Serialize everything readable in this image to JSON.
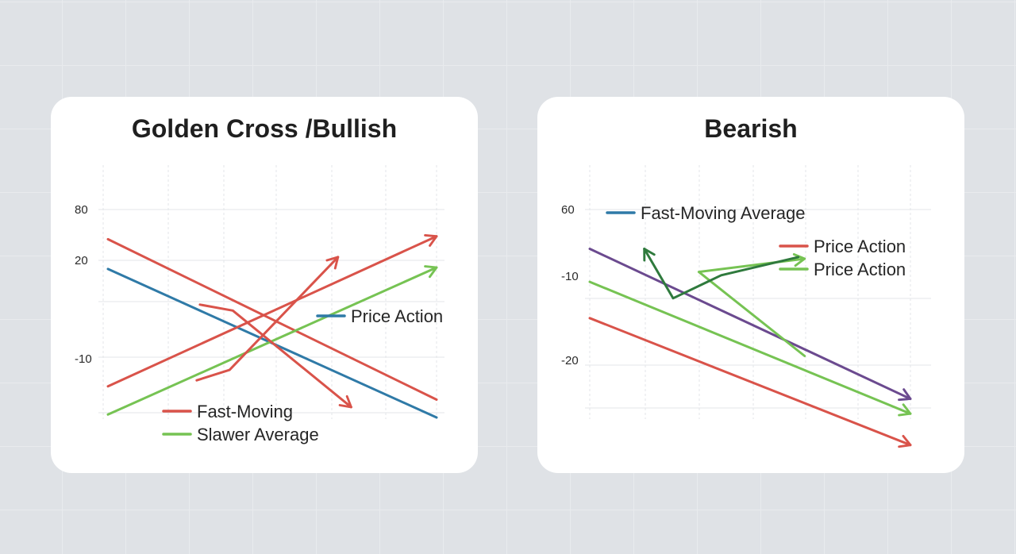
{
  "colors": {
    "background": "#dfe2e6",
    "card": "#ffffff",
    "grid": "#e3e5e8",
    "red": "#d9534a",
    "blue": "#2f7aa7",
    "green": "#76c353",
    "dark_green": "#2f7a3d",
    "purple": "#6b4a8f"
  },
  "chart_data": [
    {
      "type": "line",
      "title": "Golden Cross /Bullish",
      "y_ticks": [
        "80",
        "20",
        "-10"
      ],
      "ylim": [
        -40,
        100
      ],
      "xlim": [
        0,
        10
      ],
      "grid": true,
      "legend": [
        {
          "label": "Price Action",
          "color": "#2f7aa7",
          "placement": "center-right"
        },
        {
          "label": "Fast-Moving",
          "color": "#d9534a",
          "placement": "bottom"
        },
        {
          "label": "Slawer Average",
          "color": "#76c353",
          "placement": "bottom"
        }
      ],
      "series": [
        {
          "color": "#d9534a",
          "arrow": false,
          "points": [
            [
              0,
              80
            ],
            [
              10,
              -28
            ]
          ]
        },
        {
          "color": "#2f7aa7",
          "arrow": false,
          "points": [
            [
              0,
              60
            ],
            [
              10,
              -40
            ]
          ]
        },
        {
          "color": "#d9534a",
          "arrow": true,
          "points": [
            [
              0,
              -19
            ],
            [
              10,
              82
            ]
          ]
        },
        {
          "color": "#76c353",
          "arrow": true,
          "points": [
            [
              0,
              -38
            ],
            [
              10,
              61
            ]
          ]
        },
        {
          "color": "#d9534a",
          "arrow": true,
          "points": [
            [
              2.7,
              -15
            ],
            [
              3.7,
              -8
            ],
            [
              7.0,
              68
            ]
          ]
        },
        {
          "color": "#d9534a",
          "arrow": true,
          "points": [
            [
              2.8,
              36
            ],
            [
              3.8,
              32
            ],
            [
              7.4,
              -33
            ]
          ]
        }
      ]
    },
    {
      "type": "line",
      "title": "Bearish",
      "y_ticks": [
        "60",
        "-10",
        "-20"
      ],
      "ylim": [
        -60,
        70
      ],
      "xlim": [
        0,
        10
      ],
      "grid": true,
      "legend": [
        {
          "label": "Fast-Moving Average",
          "color": "#2f7aa7",
          "placement": "top-left"
        },
        {
          "label": "Price Action",
          "color": "#d9534a",
          "placement": "top-right"
        },
        {
          "label": "Price Action",
          "color": "#76c353",
          "placement": "top-right"
        }
      ],
      "series": [
        {
          "color": "#6b4a8f",
          "arrow": true,
          "points": [
            [
              0,
              50
            ],
            [
              10,
              -41
            ]
          ]
        },
        {
          "color": "#76c353",
          "arrow": true,
          "points": [
            [
              0,
              30
            ],
            [
              10,
              -50
            ]
          ]
        },
        {
          "color": "#d9534a",
          "arrow": true,
          "points": [
            [
              0,
              8
            ],
            [
              10,
              -69
            ]
          ]
        },
        {
          "color": "#76c353",
          "arrow": true,
          "points": [
            [
              6.7,
              -15
            ],
            [
              3.4,
              36
            ],
            [
              6.7,
              44
            ]
          ]
        },
        {
          "color": "#2f7a3d",
          "arrow": true,
          "points": [
            [
              6.5,
              45
            ],
            [
              4.1,
              34
            ],
            [
              2.6,
              20
            ],
            [
              1.7,
              50
            ]
          ]
        }
      ]
    }
  ]
}
